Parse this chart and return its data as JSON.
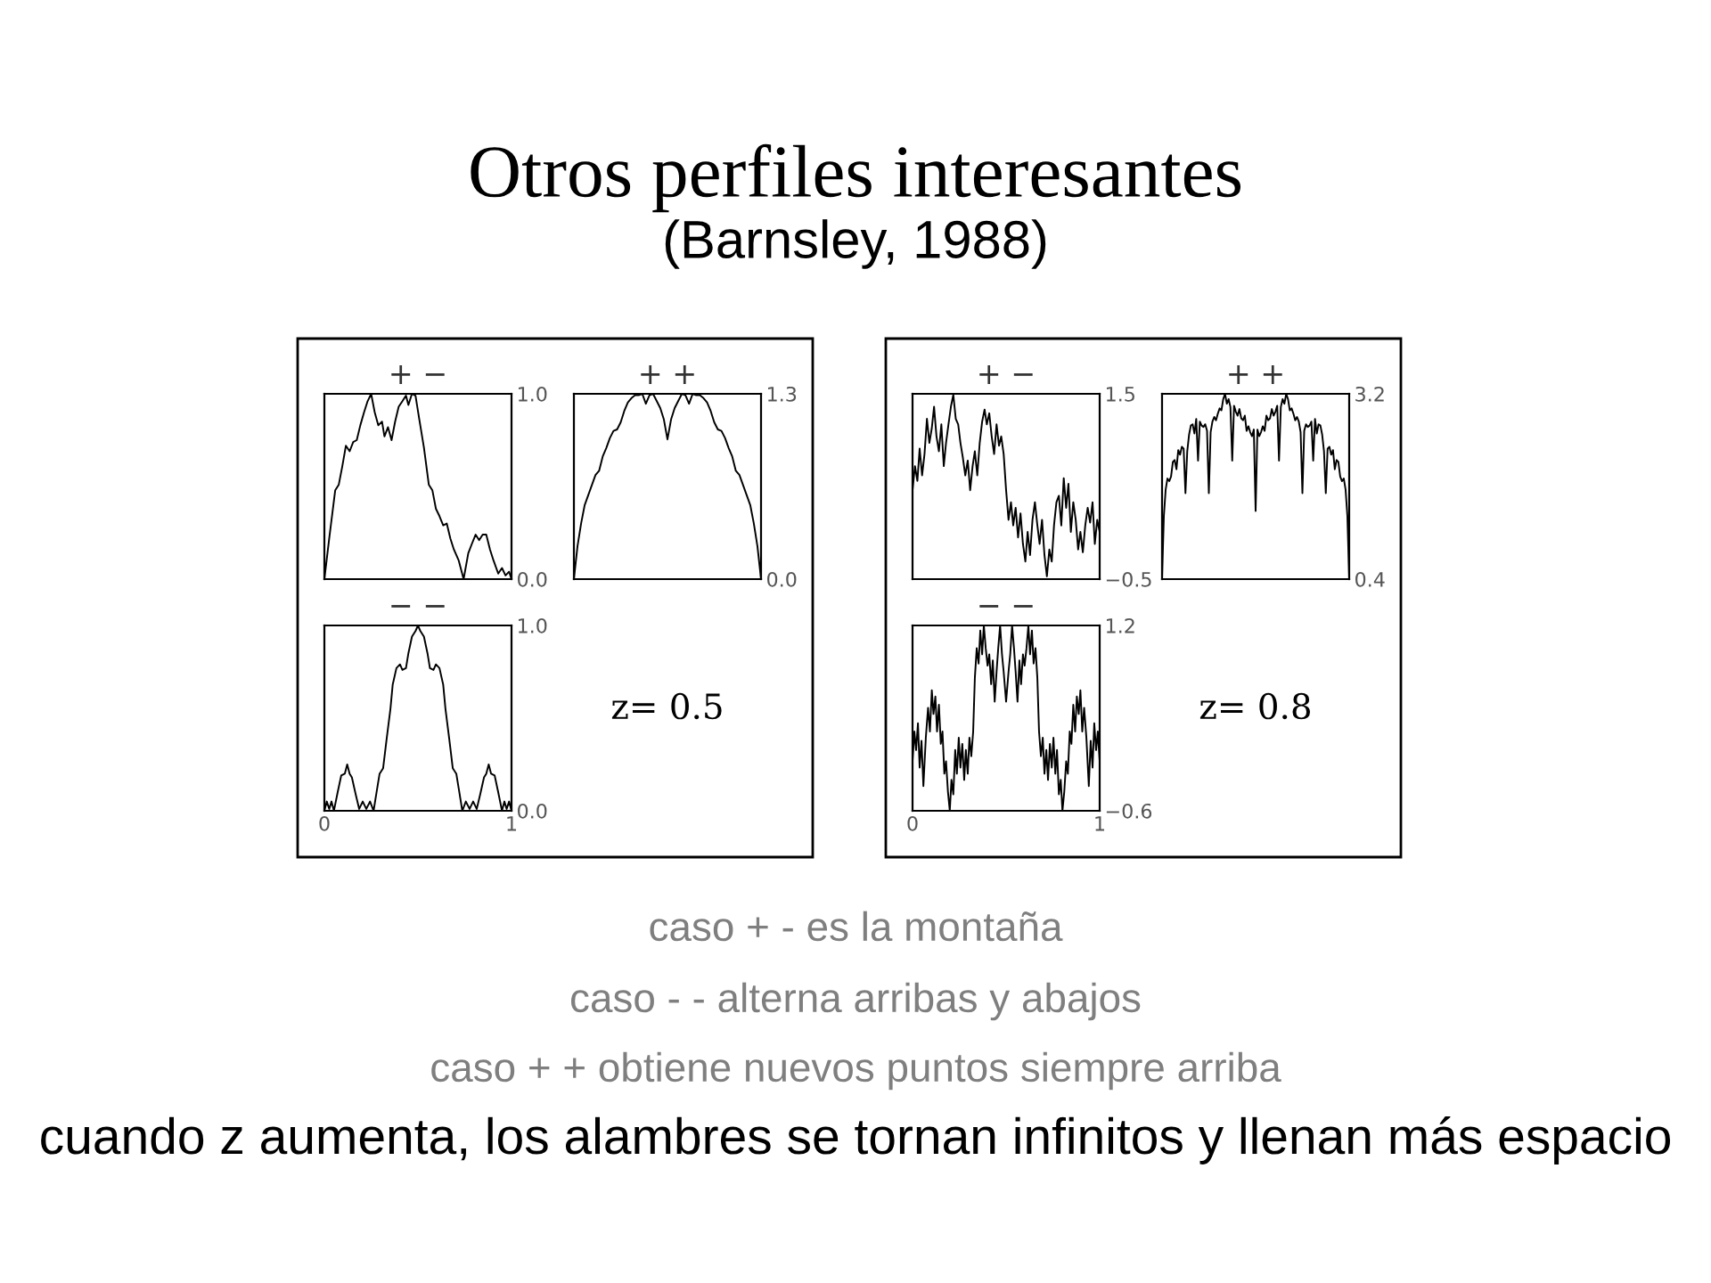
{
  "chart_data": [
    {
      "type": "line",
      "title": "+ −",
      "color": "#000000",
      "xlim": [
        0,
        1
      ],
      "ylim": [
        0,
        1
      ],
      "yticks": [
        {
          "value": 0,
          "label": "0.0"
        },
        {
          "value": 1,
          "label": "1.0"
        }
      ],
      "tick_labels": "y",
      "x": [
        0,
        0.026,
        0.058,
        0.077,
        0.096,
        0.115,
        0.135,
        0.154,
        0.173,
        0.192,
        0.212,
        0.231,
        0.25,
        0.269,
        0.288,
        0.308,
        0.321,
        0.34,
        0.359,
        0.378,
        0.397,
        0.417,
        0.436,
        0.449,
        0.468,
        0.487,
        0.506,
        0.532,
        0.558,
        0.577,
        0.596,
        0.615,
        0.635,
        0.654,
        0.673,
        0.692,
        0.718,
        0.744,
        0.769,
        0.788,
        0.808,
        0.827,
        0.846,
        0.865,
        0.885,
        0.904,
        0.929,
        0.949,
        0.968,
        0.987,
        1.0
      ],
      "values": [
        0,
        0.22,
        0.48,
        0.51,
        0.61,
        0.72,
        0.69,
        0.74,
        0.75,
        0.83,
        0.9,
        0.96,
        1.0,
        0.9,
        0.83,
        0.85,
        0.77,
        0.82,
        0.75,
        0.85,
        0.93,
        0.96,
        0.99,
        0.94,
        1.0,
        0.99,
        0.87,
        0.71,
        0.51,
        0.48,
        0.38,
        0.34,
        0.29,
        0.3,
        0.22,
        0.16,
        0.1,
        0,
        0.14,
        0.19,
        0.24,
        0.21,
        0.24,
        0.24,
        0.16,
        0.1,
        0.03,
        0.06,
        0.02,
        0.04,
        0
      ]
    },
    {
      "type": "line",
      "title": "+ +",
      "color": "#000000",
      "ylim": [
        0,
        1.3
      ],
      "yticks": [
        {
          "value": 0,
          "label": "0.0"
        },
        1.3
      ],
      "tick_labels": "y",
      "categories": [
        null,
        null,
        null,
        null,
        null,
        null,
        null,
        null,
        null,
        null,
        null,
        null,
        null,
        null,
        null,
        null,
        null,
        null,
        null,
        null,
        null,
        null,
        null,
        null,
        null,
        null,
        null,
        null,
        null,
        null,
        null,
        null,
        null,
        null,
        null,
        null,
        null,
        null,
        null,
        null,
        null,
        null,
        null,
        null,
        null,
        null,
        null,
        null,
        null,
        null,
        null,
        null,
        null
      ],
      "values": [
        0,
        0.23,
        0.39,
        0.52,
        0.59,
        0.66,
        0.73,
        0.76,
        0.86,
        0.92,
        0.99,
        1.04,
        1.05,
        1.1,
        1.18,
        1.24,
        1.27,
        1.29,
        1.29,
        1.3,
        1.23,
        1.29,
        1.3,
        1.25,
        1.2,
        1.12,
        0.98,
        1.12,
        1.2,
        1.25,
        1.3,
        1.29,
        1.23,
        1.3,
        1.29,
        1.29,
        1.27,
        1.24,
        1.18,
        1.1,
        1.05,
        1.04,
        0.99,
        0.92,
        0.86,
        0.76,
        0.73,
        0.66,
        0.59,
        0.52,
        0.39,
        0.23,
        0
      ]
    },
    {
      "type": "line",
      "title": "+ −",
      "color": "#000000",
      "xlim": [
        0,
        1
      ],
      "ylim": [
        -0.5,
        1.5
      ],
      "yticks": [
        {
          "value": -0.5,
          "label": "−0.5"
        },
        1.5
      ],
      "tick_labels": "y",
      "x": [
        0,
        0.013,
        0.026,
        0.038,
        0.051,
        0.064,
        0.077,
        0.09,
        0.103,
        0.115,
        0.128,
        0.141,
        0.154,
        0.167,
        0.179,
        0.192,
        0.205,
        0.218,
        0.231,
        0.244,
        0.256,
        0.269,
        0.282,
        0.295,
        0.308,
        0.321,
        0.333,
        0.346,
        0.359,
        0.372,
        0.385,
        0.397,
        0.41,
        0.423,
        0.436,
        0.449,
        0.462,
        0.474,
        0.487,
        0.5,
        0.513,
        0.526,
        0.538,
        0.551,
        0.564,
        0.577,
        0.59,
        0.603,
        0.615,
        0.628,
        0.641,
        0.654,
        0.667,
        0.679,
        0.692,
        0.705,
        0.718,
        0.731,
        0.744,
        0.756,
        0.769,
        0.782,
        0.795,
        0.808,
        0.821,
        0.833,
        0.846,
        0.859,
        0.872,
        0.885,
        0.897,
        0.91,
        0.923,
        0.936,
        0.949,
        0.962,
        0.974,
        0.987,
        1.0
      ],
      "values": [
        0.46,
        0.72,
        0.56,
        0.91,
        0.62,
        0.85,
        1.23,
        0.97,
        1.13,
        1.36,
        1.04,
        0.88,
        1.17,
        0.72,
        0.97,
        1.17,
        1.36,
        1.49,
        1.23,
        1.17,
        0.97,
        0.81,
        0.62,
        0.78,
        0.46,
        0.72,
        0.88,
        0.62,
        0.97,
        1.2,
        1.33,
        1.17,
        1.29,
        1.04,
        0.85,
        1.17,
        0.94,
        1.04,
        0.85,
        0.46,
        0.14,
        0.33,
        0.08,
        0.27,
        -0.05,
        0.21,
        -0.12,
        -0.31,
        0.01,
        -0.24,
        0.14,
        0.33,
        0.08,
        -0.12,
        0.14,
        -0.24,
        -0.47,
        -0.18,
        -0.31,
        0.08,
        0.33,
        0.4,
        0.08,
        0.59,
        0.27,
        0.53,
        0.01,
        0.33,
        0.14,
        -0.18,
        0.01,
        -0.21,
        0.08,
        0.27,
        0.11,
        0.33,
        -0.12,
        0.14,
        0.01
      ]
    },
    {
      "type": "line",
      "title": "+ +",
      "color": "#000000",
      "ylim": [
        0.4,
        3.2
      ],
      "yticks": [
        0.4,
        3.2
      ],
      "tick_labels": "y",
      "categories": [
        null,
        null,
        null,
        null,
        null,
        null,
        null,
        null,
        null,
        null,
        null,
        null,
        null,
        null,
        null,
        null,
        null,
        null,
        null,
        null,
        null,
        null,
        null,
        null,
        null,
        null,
        null,
        null,
        null,
        null,
        null,
        null,
        null,
        null,
        null,
        null,
        null,
        null,
        null,
        null,
        null,
        null,
        null,
        null,
        null,
        null,
        null,
        null,
        null,
        null,
        null,
        null,
        null,
        null,
        null,
        null,
        null,
        null,
        null,
        null,
        null,
        null,
        null,
        null,
        null,
        null,
        null,
        null,
        null,
        null,
        null,
        null,
        null,
        null,
        null,
        null,
        null,
        null,
        null,
        null,
        null,
        null,
        null,
        null,
        null,
        null,
        null,
        null,
        null,
        null,
        null,
        null,
        null,
        null,
        null,
        null,
        null,
        null,
        null,
        null,
        null,
        null,
        null,
        null,
        null
      ],
      "values": [
        0.4,
        1.35,
        1.75,
        1.92,
        1.88,
        1.95,
        2.17,
        2.2,
        2.06,
        2.35,
        2.28,
        2.4,
        2.37,
        1.7,
        2.33,
        2.58,
        2.72,
        2.74,
        2.6,
        2.82,
        2.19,
        2.78,
        2.72,
        2.7,
        2.74,
        2.64,
        1.7,
        2.62,
        2.78,
        2.85,
        2.8,
        2.9,
        2.98,
        2.95,
        3.12,
        3.2,
        3.05,
        3.12,
        3.0,
        2.19,
        3.02,
        2.93,
        2.87,
        2.97,
        2.83,
        2.8,
        2.87,
        2.64,
        2.71,
        2.62,
        2.56,
        2.66,
        1.43,
        2.66,
        2.56,
        2.62,
        2.71,
        2.64,
        2.87,
        2.8,
        2.83,
        2.97,
        2.87,
        2.93,
        3.02,
        2.19,
        3.0,
        3.12,
        3.05,
        3.2,
        3.12,
        2.95,
        2.98,
        2.9,
        2.8,
        2.85,
        2.78,
        2.62,
        1.7,
        2.64,
        2.74,
        2.7,
        2.72,
        2.78,
        2.19,
        2.82,
        2.6,
        2.74,
        2.72,
        2.58,
        2.33,
        1.7,
        2.37,
        2.4,
        2.28,
        2.35,
        2.06,
        2.2,
        2.17,
        1.95,
        1.88,
        1.92,
        1.75,
        1.35,
        0.4
      ]
    },
    {
      "type": "line",
      "title": "− −",
      "color": "#000000",
      "xlim": [
        0,
        1
      ],
      "ylim": [
        0,
        1
      ],
      "xticks": [
        0,
        1
      ],
      "yticks": [
        {
          "value": 0,
          "label": "0.0"
        },
        {
          "value": 1,
          "label": "1.0"
        }
      ],
      "annotations": [
        "z= 0.5"
      ],
      "x": [
        0,
        0.013,
        0.026,
        0.038,
        0.051,
        0.071,
        0.09,
        0.109,
        0.122,
        0.135,
        0.147,
        0.167,
        0.186,
        0.205,
        0.224,
        0.244,
        0.263,
        0.282,
        0.295,
        0.314,
        0.333,
        0.353,
        0.365,
        0.385,
        0.404,
        0.417,
        0.436,
        0.449,
        0.468,
        0.487,
        0.5,
        0.513,
        0.532,
        0.551,
        0.564,
        0.583,
        0.596,
        0.615,
        0.635,
        0.647,
        0.667,
        0.686,
        0.705,
        0.718,
        0.737,
        0.756,
        0.776,
        0.795,
        0.814,
        0.833,
        0.853,
        0.865,
        0.878,
        0.891,
        0.91,
        0.929,
        0.949,
        0.962,
        0.974,
        0.987,
        1.0
      ],
      "values": [
        0,
        0.05,
        0.01,
        0.05,
        0,
        0.1,
        0.19,
        0.2,
        0.25,
        0.2,
        0.18,
        0.09,
        0.01,
        0.05,
        0.01,
        0.05,
        0,
        0.12,
        0.2,
        0.23,
        0.39,
        0.55,
        0.68,
        0.77,
        0.79,
        0.76,
        0.77,
        0.85,
        0.94,
        0.97,
        1.0,
        0.97,
        0.94,
        0.85,
        0.77,
        0.76,
        0.79,
        0.77,
        0.68,
        0.55,
        0.39,
        0.23,
        0.2,
        0.12,
        0,
        0.05,
        0.01,
        0.05,
        0.01,
        0.09,
        0.18,
        0.2,
        0.25,
        0.2,
        0.19,
        0.1,
        0,
        0.05,
        0.01,
        0.05,
        0
      ]
    },
    {
      "type": "line",
      "title": "− −",
      "color": "#000000",
      "xlim": [
        0,
        1
      ],
      "ylim": [
        -0.6,
        1.2
      ],
      "xticks": [
        0,
        1
      ],
      "yticks": [
        {
          "value": -0.6,
          "label": "−0.6"
        },
        1.2
      ],
      "annotations": [
        "z= 0.8"
      ],
      "x": [
        0,
        0.01,
        0.019,
        0.029,
        0.038,
        0.048,
        0.058,
        0.071,
        0.083,
        0.093,
        0.103,
        0.112,
        0.122,
        0.131,
        0.141,
        0.151,
        0.16,
        0.17,
        0.179,
        0.189,
        0.199,
        0.208,
        0.218,
        0.228,
        0.237,
        0.247,
        0.256,
        0.266,
        0.276,
        0.285,
        0.295,
        0.304,
        0.314,
        0.324,
        0.333,
        0.343,
        0.353,
        0.362,
        0.372,
        0.381,
        0.391,
        0.401,
        0.41,
        0.42,
        0.429,
        0.439,
        0.449,
        0.458,
        0.468,
        0.478,
        0.487,
        0.5,
        0.513,
        0.522,
        0.532,
        0.542,
        0.551,
        0.561,
        0.571,
        0.58,
        0.59,
        0.599,
        0.609,
        0.619,
        0.628,
        0.638,
        0.647,
        0.657,
        0.667,
        0.676,
        0.686,
        0.696,
        0.705,
        0.715,
        0.724,
        0.734,
        0.744,
        0.753,
        0.763,
        0.772,
        0.782,
        0.792,
        0.801,
        0.811,
        0.821,
        0.83,
        0.84,
        0.849,
        0.859,
        0.869,
        0.878,
        0.888,
        0.897,
        0.907,
        0.917,
        0.929,
        0.942,
        0.952,
        0.962,
        0.971,
        0.981,
        0.99,
        1.0
      ],
      "values": [
        -0.12,
        0.17,
        -0.01,
        0.25,
        -0.18,
        0.08,
        -0.36,
        0.11,
        0.4,
        0.17,
        0.57,
        0.34,
        0.51,
        0.17,
        0.43,
        0.05,
        0.17,
        -0.24,
        -0.12,
        -0.41,
        -0.6,
        -0.3,
        -0.44,
        -0.01,
        -0.24,
        0.11,
        -0.18,
        0.05,
        -0.3,
        -0.01,
        -0.24,
        0.11,
        -0.07,
        0.17,
        0.69,
        0.98,
        0.83,
        1.15,
        0.92,
        1.2,
        0.98,
        0.81,
        0.92,
        0.63,
        0.86,
        0.46,
        0.75,
        0.98,
        1.2,
        0.92,
        0.75,
        0.46,
        0.75,
        0.92,
        1.2,
        0.98,
        0.75,
        0.46,
        0.86,
        0.63,
        0.92,
        0.81,
        0.98,
        1.2,
        0.92,
        1.15,
        0.83,
        0.98,
        0.69,
        0.17,
        -0.07,
        0.11,
        -0.24,
        -0.01,
        -0.3,
        0.05,
        -0.18,
        0.11,
        -0.24,
        -0.01,
        -0.44,
        -0.3,
        -0.6,
        -0.41,
        -0.12,
        -0.24,
        0.17,
        0.05,
        0.43,
        0.17,
        0.51,
        0.34,
        0.57,
        0.17,
        0.4,
        0.11,
        -0.36,
        0.08,
        -0.18,
        0.25,
        -0.01,
        0.17,
        -0.12
      ]
    },
    {
      "type": "other",
      "title": "Otros perfiles interesantes",
      "subtitle": "(Barnsley, 1988)",
      "annotations": [
        "caso + - es la montaña",
        "caso - - alterna arribas y abajos",
        "caso + + obtiene nuevos puntos siempre arriba",
        "cuando z aumenta, los alambres se tornan infinitos y llenan más espacio"
      ]
    }
  ]
}
